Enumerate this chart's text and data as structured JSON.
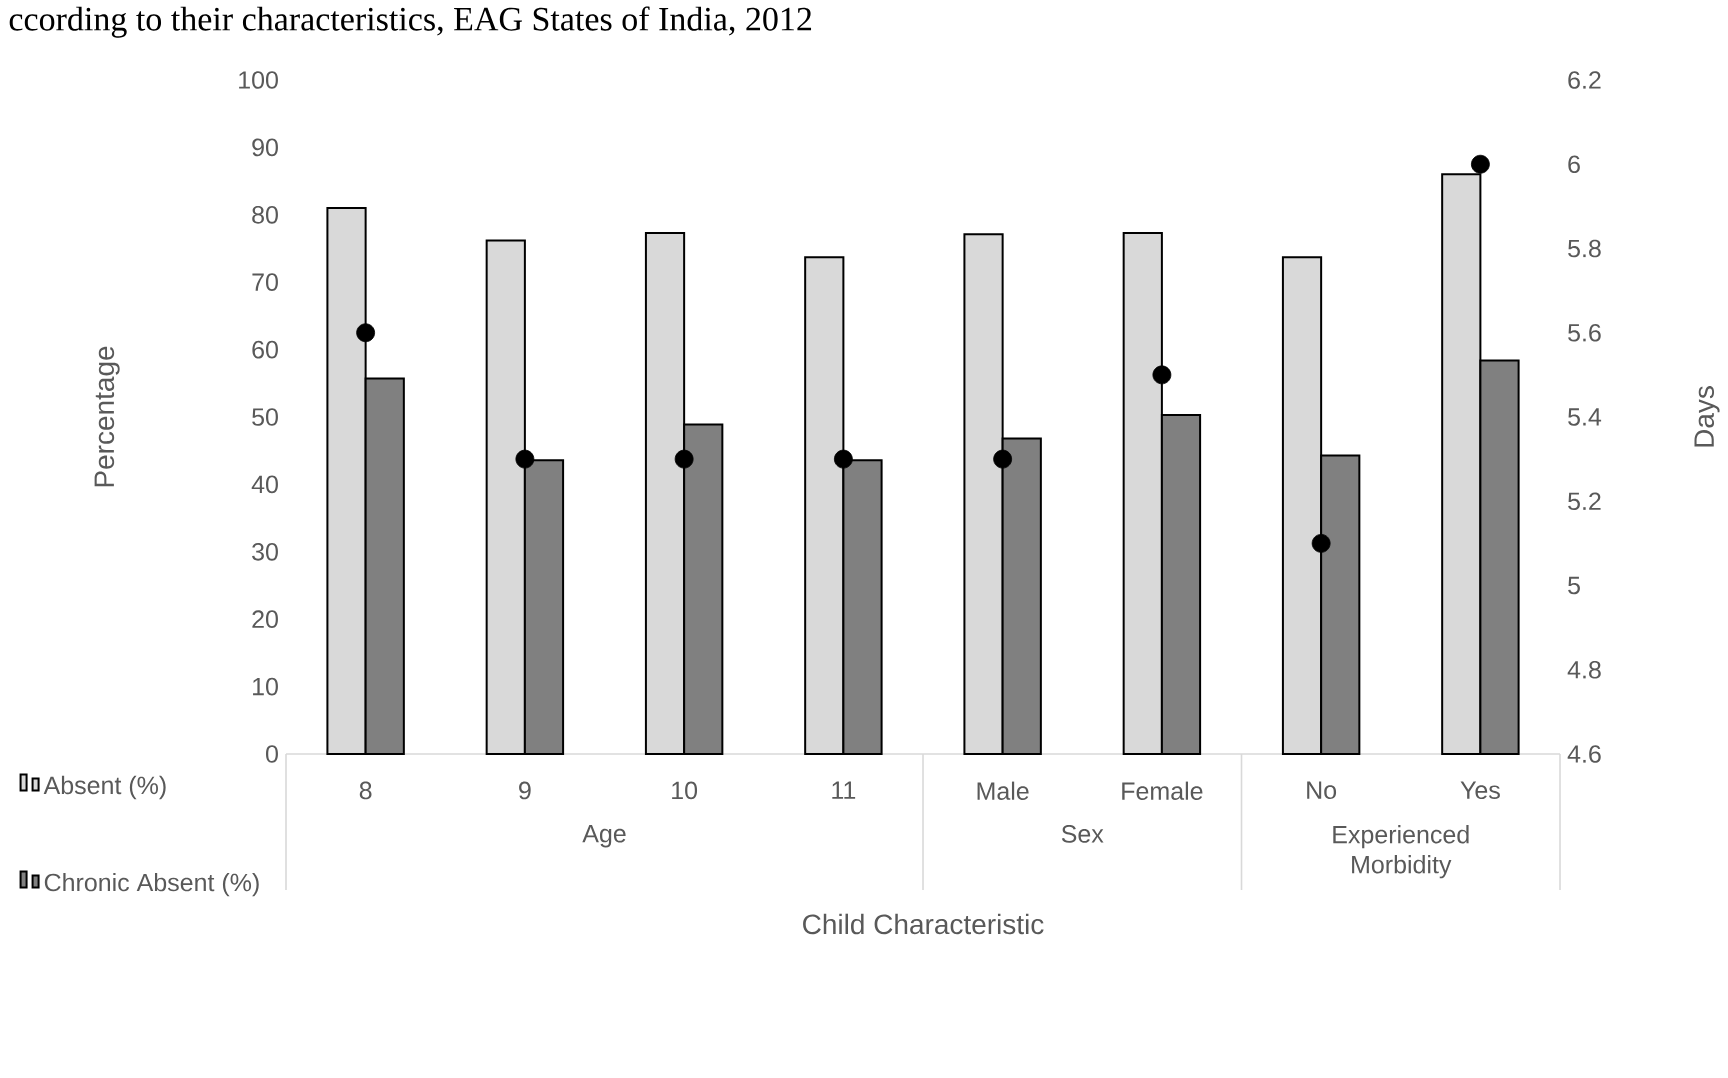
{
  "chart_data": {
    "type": "bar",
    "title": "ccording to their characteristics, EAG States of India, 2012",
    "xlabel": "Child Characteristic",
    "ylabel": "Percentage",
    "y2label": "Days",
    "categories": [
      "8",
      "9",
      "10",
      "11",
      "Male",
      "Female",
      "No",
      "Yes"
    ],
    "series": [
      {
        "name": "Absent (%)",
        "color": "#d9d9d9",
        "values": [
          81.0,
          76.2,
          77.3,
          73.7,
          77.1,
          77.3,
          73.7,
          86.0
        ]
      },
      {
        "name": "Chronic Absent (%)",
        "color": "#808080",
        "values": [
          55.7,
          43.6,
          48.9,
          43.6,
          46.8,
          50.3,
          44.3,
          58.4
        ]
      },
      {
        "type": "scatter",
        "axis": "y2",
        "color": "#000000",
        "marker": "circle",
        "values": [
          5.6,
          5.3,
          5.3,
          5.3,
          5.3,
          5.5,
          5.1,
          6.0
        ]
      }
    ],
    "annotations": [
      "Age",
      "Sex",
      "Experienced Morbidity"
    ],
    "ylim": [
      0,
      100
    ],
    "yticks": [
      0,
      10,
      20,
      30,
      40,
      50,
      60,
      70,
      80,
      90,
      100
    ],
    "y2lim": [
      4.6,
      6.2
    ],
    "y2ticks": [
      4.6,
      4.8,
      5,
      5.2,
      5.4,
      5.6,
      5.8,
      6,
      6.2
    ],
    "legend": "left",
    "grid": false
  }
}
